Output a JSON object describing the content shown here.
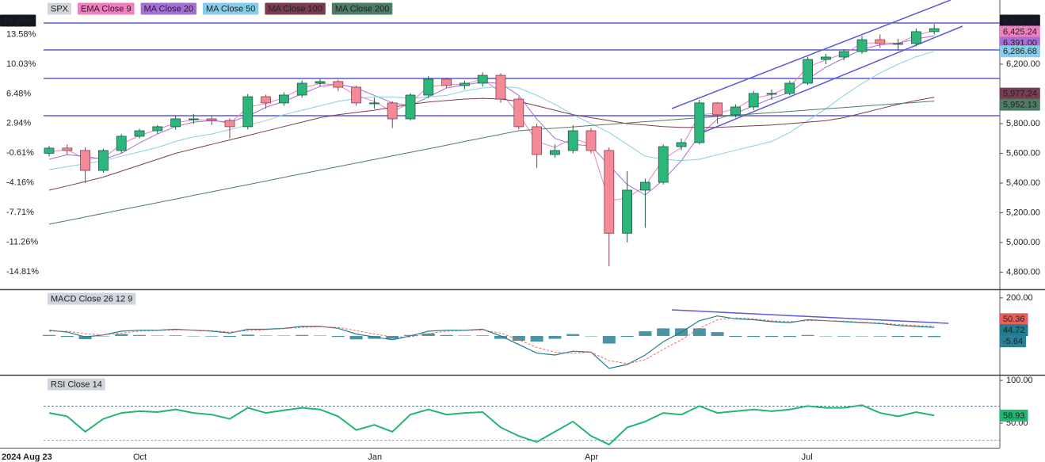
{
  "chart_data": [
    {
      "type": "candlestick",
      "title": "SPX",
      "categories": [
        "2024 Aug 23",
        null,
        null,
        null,
        null,
        "Oct",
        null,
        null,
        null,
        null,
        null,
        null,
        null,
        null,
        null,
        null,
        null,
        null,
        "Jan",
        null,
        null,
        null,
        null,
        null,
        null,
        null,
        null,
        null,
        null,
        null,
        "Apr",
        null,
        null,
        null,
        null,
        null,
        null,
        null,
        null,
        null,
        null,
        null,
        "Jul",
        null,
        null,
        null,
        null,
        null,
        null,
        null
      ],
      "open": [
        5600,
        5635,
        5619,
        5485,
        5619,
        5715,
        5752,
        5779,
        5832,
        5832,
        5821,
        5779,
        5981,
        5939,
        5992,
        6072,
        6083,
        6045,
        5939,
        5939,
        5832,
        5992,
        6099,
        6056,
        6072,
        6125,
        5965,
        5779,
        5592,
        5619,
        5752,
        5619,
        5062,
        5352,
        5405,
        5645,
        5672,
        5939,
        5859,
        5912,
        6003,
        6003,
        6072,
        6232,
        6248,
        6285,
        6365,
        6339,
        6339,
        6419
      ],
      "high": [
        5650,
        5660,
        5640,
        5630,
        5730,
        5765,
        5790,
        5850,
        5865,
        5850,
        5835,
        6000,
        5995,
        6010,
        6090,
        6100,
        6095,
        6055,
        5975,
        5950,
        6005,
        6120,
        6110,
        6090,
        6145,
        6140,
        5980,
        5800,
        5660,
        5790,
        5770,
        5640,
        5480,
        5430,
        5660,
        5700,
        5960,
        5945,
        5930,
        6020,
        6030,
        6090,
        6250,
        6270,
        6300,
        6390,
        6400,
        6370,
        6440,
        6470
      ],
      "low": [
        5580,
        5590,
        5400,
        5470,
        5600,
        5700,
        5730,
        5760,
        5800,
        5790,
        5700,
        5760,
        5900,
        5920,
        5975,
        6050,
        6020,
        5920,
        5900,
        5770,
        5820,
        5970,
        6040,
        6030,
        6050,
        5940,
        5760,
        5500,
        5570,
        5600,
        5600,
        4840,
        5000,
        5100,
        5390,
        5620,
        5660,
        5800,
        5840,
        5890,
        5960,
        5990,
        6060,
        6200,
        6225,
        6270,
        6310,
        6290,
        6320,
        6400
      ],
      "close": [
        5635,
        5619,
        5485,
        5619,
        5715,
        5752,
        5779,
        5832,
        5832,
        5821,
        5779,
        5981,
        5939,
        5992,
        6072,
        6083,
        6045,
        5939,
        5939,
        5832,
        5992,
        6099,
        6056,
        6072,
        6125,
        5965,
        5779,
        5592,
        5619,
        5752,
        5619,
        5062,
        5352,
        5405,
        5645,
        5672,
        5939,
        5859,
        5912,
        6003,
        6003,
        6072,
        6232,
        6248,
        6285,
        6365,
        6339,
        6339,
        6419,
        6439.24
      ],
      "up_color": "#2db67c",
      "down_color": "#f48a97",
      "last_label": "6,439.24",
      "label_color": "#131722",
      "change": 14.28,
      "change_label": "14.28%",
      "series": [
        {
          "name": "EMA Close 9",
          "color": "#f07fbf",
          "last_label": "6,425.24",
          "values": [
            5610,
            5625,
            5560,
            5570,
            5660,
            5720,
            5760,
            5805,
            5825,
            5825,
            5800,
            5910,
            5935,
            5975,
            6040,
            6070,
            6060,
            5990,
            5950,
            5880,
            5940,
            6050,
            6060,
            6065,
            6100,
            6010,
            5860,
            5680,
            5640,
            5700,
            5660,
            5280,
            5300,
            5380,
            5560,
            5640,
            5860,
            5870,
            5900,
            5970,
            5995,
            6050,
            6180,
            6230,
            6270,
            6340,
            6345,
            6340,
            6395,
            6425.24
          ]
        },
        {
          "name": "MA Close 20",
          "color": "#a76ed6",
          "last_label": "6,391.00",
          "values": [
            5560,
            5590,
            5580,
            5560,
            5600,
            5670,
            5730,
            5780,
            5810,
            5820,
            5810,
            5850,
            5910,
            5950,
            6000,
            6050,
            6065,
            6040,
            5990,
            5940,
            5920,
            5980,
            6040,
            6060,
            6080,
            6070,
            5990,
            5830,
            5700,
            5660,
            5650,
            5520,
            5390,
            5320,
            5420,
            5550,
            5720,
            5830,
            5870,
            5920,
            5970,
            6010,
            6100,
            6180,
            6240,
            6300,
            6330,
            6340,
            6370,
            6391
          ]
        },
        {
          "name": "MA Close 50",
          "color": "#87cde6",
          "last_label": "6,286.68",
          "values": [
            5490,
            5510,
            5530,
            5550,
            5580,
            5610,
            5640,
            5680,
            5710,
            5730,
            5760,
            5790,
            5820,
            5860,
            5890,
            5920,
            5950,
            5970,
            5980,
            5980,
            5970,
            5980,
            5990,
            6020,
            6040,
            6050,
            6040,
            5990,
            5930,
            5860,
            5800,
            5740,
            5660,
            5580,
            5560,
            5550,
            5560,
            5590,
            5620,
            5650,
            5680,
            5740,
            5820,
            5900,
            5990,
            6070,
            6140,
            6200,
            6250,
            6286.68
          ]
        },
        {
          "name": "MA Close 100",
          "color": "#7a3c52",
          "last_label": "5,977.24",
          "values": [
            5352,
            5380,
            5410,
            5440,
            5480,
            5520,
            5560,
            5600,
            5630,
            5660,
            5690,
            5720,
            5750,
            5780,
            5810,
            5840,
            5860,
            5875,
            5890,
            5910,
            5930,
            5945,
            5955,
            5965,
            5970,
            5965,
            5950,
            5920,
            5890,
            5860,
            5840,
            5820,
            5800,
            5790,
            5780,
            5775,
            5775,
            5775,
            5780,
            5785,
            5790,
            5800,
            5810,
            5820,
            5840,
            5870,
            5900,
            5930,
            5955,
            5977.24
          ]
        },
        {
          "name": "MA Close 200",
          "color": "#4d7d62",
          "last_label": "5,952.13",
          "values": [
            5123,
            5147,
            5171,
            5196,
            5220,
            5244,
            5268,
            5292,
            5317,
            5341,
            5365,
            5389,
            5413,
            5438,
            5462,
            5486,
            5510,
            5534,
            5559,
            5583,
            5607,
            5631,
            5655,
            5680,
            5704,
            5728,
            5752,
            5761,
            5769,
            5778,
            5787,
            5795,
            5804,
            5813,
            5821,
            5830,
            5839,
            5848,
            5856,
            5865,
            5874,
            5882,
            5891,
            5900,
            5908,
            5917,
            5926,
            5935,
            5943,
            5952.13
          ]
        }
      ],
      "ylim": [
        4685,
        6632
      ],
      "yticks": [
        {
          "value": 4800,
          "label": "4,800.00"
        },
        {
          "value": 5000,
          "label": "5,000.00"
        },
        {
          "value": 5200,
          "label": "5,200.00"
        },
        {
          "value": 5400,
          "label": "5,400.00"
        },
        {
          "value": 5600,
          "label": "5,600.00"
        },
        {
          "value": 5800,
          "label": "5,800.00"
        },
        {
          "value": 6200,
          "label": "6,200.00"
        }
      ],
      "y2lim": [
        -16.86,
        17.69
      ],
      "y2ticks": [
        {
          "value": 13.58,
          "label": "13.58%"
        },
        {
          "value": 10.03,
          "label": "10.03%"
        },
        {
          "value": 6.48,
          "label": "6.48%"
        },
        {
          "value": 2.94,
          "label": "2.94%"
        },
        {
          "value": -0.61,
          "label": "-0.61%"
        },
        {
          "value": -4.16,
          "label": "-4.16%"
        },
        {
          "value": -7.71,
          "label": "-7.71%"
        },
        {
          "value": -11.26,
          "label": "-11.26%"
        },
        {
          "value": -14.81,
          "label": "-14.81%"
        }
      ]
    },
    {
      "type": "macd",
      "title": "MACD Close 26 12 9",
      "series": [
        {
          "style": "histogram",
          "color": "#2a8196",
          "last_label": "-5.64",
          "values": [
            5,
            -5,
            -17,
            0,
            10,
            5,
            2,
            3,
            -2,
            -3,
            -5,
            7,
            2,
            2,
            5,
            2,
            -5,
            -18,
            -15,
            -15,
            5,
            13,
            5,
            2,
            3,
            -15,
            -25,
            -30,
            -15,
            10,
            0,
            -40,
            -5,
            25,
            40,
            40,
            40,
            20,
            -5,
            -5,
            -5,
            -5,
            5,
            0,
            -3,
            -2,
            -3,
            -5,
            -5,
            -5.64
          ]
        },
        {
          "style": "line",
          "color": "#1f7d8f",
          "last_label": "44.72",
          "values": [
            30,
            20,
            -5,
            5,
            25,
            30,
            30,
            35,
            30,
            25,
            15,
            35,
            35,
            40,
            50,
            50,
            40,
            10,
            -5,
            -20,
            0,
            25,
            30,
            30,
            35,
            0,
            -45,
            -90,
            -100,
            -80,
            -85,
            -170,
            -150,
            -100,
            -30,
            20,
            80,
            105,
            90,
            85,
            75,
            70,
            85,
            80,
            75,
            70,
            65,
            55,
            50,
            44.72
          ]
        },
        {
          "style": "dashed",
          "color": "#e5605a",
          "last_label": "50.36",
          "values": [
            25,
            25,
            12,
            5,
            15,
            25,
            28,
            32,
            32,
            28,
            20,
            28,
            33,
            38,
            45,
            48,
            45,
            28,
            10,
            -5,
            -5,
            12,
            25,
            28,
            32,
            15,
            -20,
            -60,
            -85,
            -90,
            -85,
            -130,
            -145,
            -125,
            -70,
            -20,
            40,
            85,
            95,
            90,
            80,
            75,
            80,
            80,
            78,
            72,
            68,
            60,
            55,
            50.36
          ]
        }
      ],
      "ylim": [
        -204,
        241
      ],
      "yticks": [
        {
          "value": 200,
          "label": "200.00"
        }
      ]
    },
    {
      "type": "line",
      "title": "RSI Close 14",
      "color": "#22b573",
      "last_label": "58.93",
      "values": [
        62,
        58,
        40,
        55,
        62,
        64,
        63,
        66,
        62,
        60,
        55,
        68,
        62,
        65,
        68,
        66,
        58,
        42,
        48,
        40,
        60,
        66,
        60,
        62,
        63,
        45,
        35,
        28,
        40,
        52,
        35,
        25,
        45,
        52,
        62,
        60,
        70,
        62,
        64,
        66,
        64,
        66,
        70,
        68,
        68,
        71,
        62,
        58,
        63,
        58.93
      ],
      "levels": [
        {
          "value": 70,
          "color": "#4a6a7a"
        },
        {
          "value": 30,
          "color": "#e06666"
        }
      ],
      "ylim": [
        21.3,
        105.6
      ],
      "yticks": [
        {
          "value": 100,
          "label": "100.00"
        },
        {
          "value": 50,
          "label": "50.00"
        }
      ]
    }
  ]
}
